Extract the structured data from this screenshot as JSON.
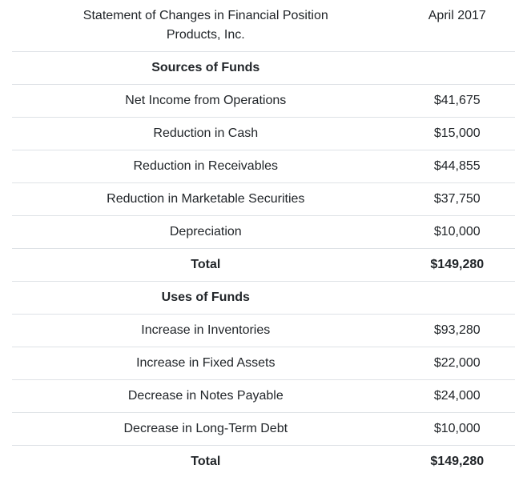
{
  "statement": {
    "header": {
      "title_line1": "Statement of Changes in Financial Position",
      "title_line2": "Products, Inc.",
      "period": "April 2017"
    },
    "rows": [
      {
        "label": "Sources of Funds",
        "value": "",
        "kind": "section"
      },
      {
        "label": "Net Income from Operations",
        "value": "$41,675",
        "kind": "item"
      },
      {
        "label": "Reduction in Cash",
        "value": "$15,000",
        "kind": "item"
      },
      {
        "label": "Reduction in Receivables",
        "value": "$44,855",
        "kind": "item"
      },
      {
        "label": "Reduction in Marketable Securities",
        "value": "$37,750",
        "kind": "item"
      },
      {
        "label": "Depreciation",
        "value": "$10,000",
        "kind": "item"
      },
      {
        "label": "Total",
        "value": "$149,280",
        "kind": "total"
      },
      {
        "label": "Uses of Funds",
        "value": "",
        "kind": "section"
      },
      {
        "label": "Increase in Inventories",
        "value": "$93,280",
        "kind": "item"
      },
      {
        "label": "Increase in Fixed Assets",
        "value": "$22,000",
        "kind": "item"
      },
      {
        "label": "Decrease in Notes Payable",
        "value": "$24,000",
        "kind": "item"
      },
      {
        "label": "Decrease in Long-Term Debt",
        "value": "$10,000",
        "kind": "item"
      },
      {
        "label": "Total",
        "value": "$149,280",
        "kind": "total"
      }
    ],
    "colors": {
      "text": "#212529",
      "border": "#dee2e6",
      "background": "#ffffff"
    }
  }
}
